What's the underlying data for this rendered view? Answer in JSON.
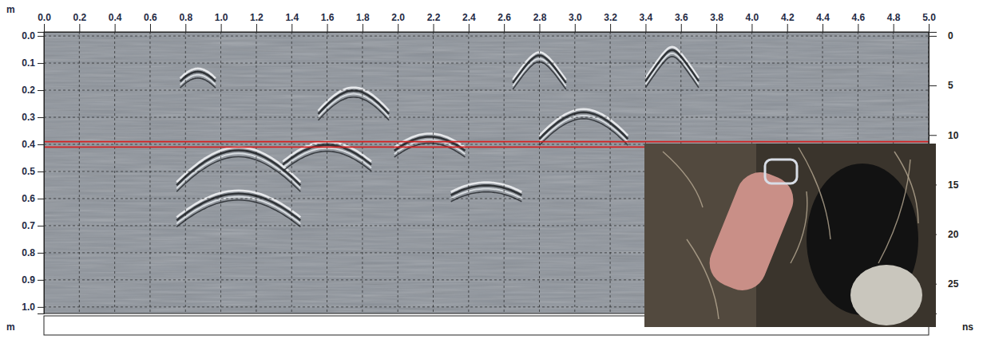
{
  "chart_data": {
    "type": "radargram",
    "ylabel": "m",
    "xlabel": "m",
    "y2label": "ns",
    "xlim": [
      0,
      5
    ],
    "xticks": [
      {
        "value": 0,
        "label": "0.0"
      },
      0.2,
      0.4,
      0.6,
      0.8,
      {
        "value": 1,
        "label": "1.0"
      },
      1.2,
      1.4,
      1.6,
      1.8,
      {
        "value": 2,
        "label": "2.0"
      },
      2.2,
      2.4,
      2.6,
      2.8,
      {
        "value": 3,
        "label": "3.0"
      },
      3.2,
      3.4,
      3.6,
      3.8,
      {
        "value": 4,
        "label": "4.0"
      },
      4.2,
      4.4,
      4.6,
      4.8,
      {
        "value": 5,
        "label": "5.0"
      }
    ],
    "ylim": [
      -0.015,
      1.024
    ],
    "yticks": [
      {
        "value": 0,
        "label": "0.0"
      },
      0.1,
      0.2,
      0.3,
      0.4,
      0.5,
      0.6,
      0.7,
      0.8,
      0.9,
      {
        "value": 1,
        "label": "1.0"
      }
    ],
    "y2lim": [
      -0.4,
      28
    ],
    "y2ticks": [
      0,
      5,
      10,
      15,
      20,
      25
    ],
    "grid": true,
    "color": "#d42020",
    "highlight_depths": [
      0.39,
      0.41
    ],
    "reflections": [
      {
        "x": 0.87,
        "depth": 0.12,
        "half_width": 0.1
      },
      {
        "x": 1.1,
        "depth": 0.41,
        "half_width": 0.35
      },
      {
        "x": 1.1,
        "depth": 0.57,
        "half_width": 0.35
      },
      {
        "x": 1.6,
        "depth": 0.39,
        "half_width": 0.25
      },
      {
        "x": 1.75,
        "depth": 0.19,
        "half_width": 0.2
      },
      {
        "x": 2.18,
        "depth": 0.36,
        "half_width": 0.2
      },
      {
        "x": 2.5,
        "depth": 0.54,
        "half_width": 0.2
      },
      {
        "x": 2.8,
        "depth": 0.06,
        "half_width": 0.15
      },
      {
        "x": 3.05,
        "depth": 0.27,
        "half_width": 0.25
      },
      {
        "x": 3.55,
        "depth": 0.04,
        "half_width": 0.15
      }
    ]
  }
}
